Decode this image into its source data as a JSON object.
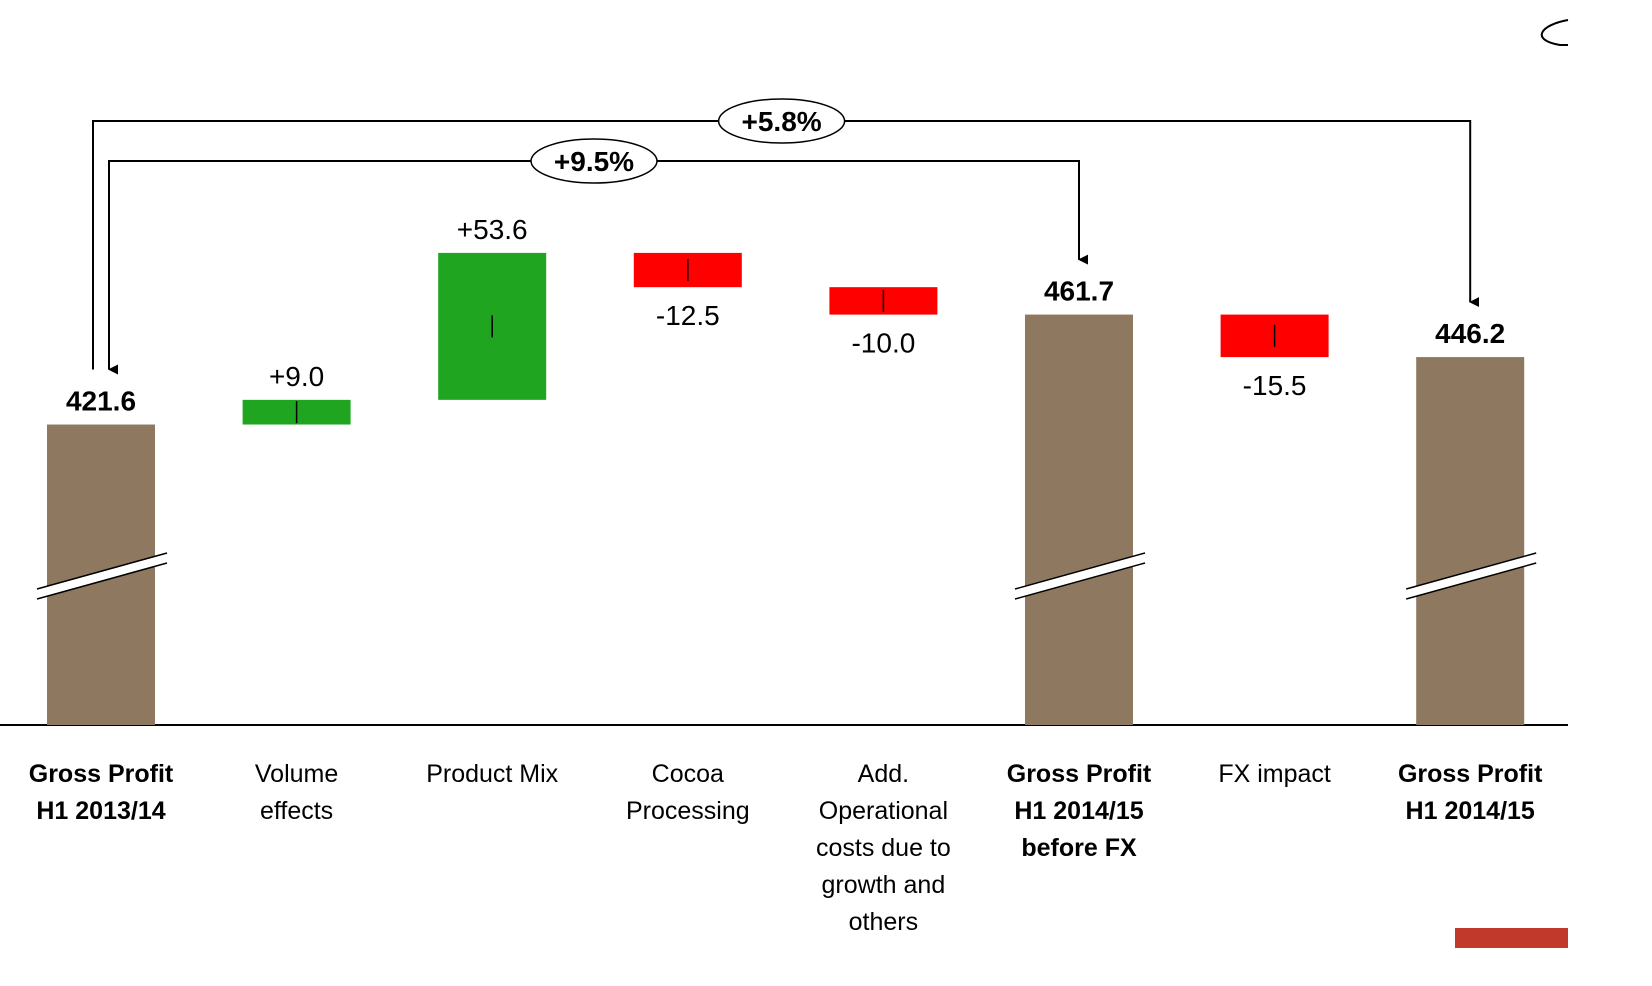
{
  "chart_data": {
    "type": "waterfall",
    "categories": [
      "Gross Profit H1 2013/14",
      "Volume effects",
      "Product Mix",
      "Cocoa Processing",
      "Add. Operational costs due to growth and others",
      "Gross Profit H1 2014/15 before FX",
      "FX impact",
      "Gross Profit H1 2014/15"
    ],
    "measure": [
      "total",
      "relative",
      "relative",
      "relative",
      "relative",
      "total",
      "relative",
      "total"
    ],
    "values": [
      421.6,
      9.0,
      53.6,
      -12.5,
      -10.0,
      461.7,
      -15.5,
      446.2
    ],
    "value_labels": [
      "421.6",
      "+9.0",
      "+53.6",
      "-12.5",
      "-10.0",
      "461.7",
      "-15.5",
      "446.2"
    ],
    "colors": {
      "total": "#8f7860",
      "increase": "#1fa51f",
      "decrease": "#ff0000"
    },
    "ylim": [
      312,
      490
    ],
    "axis_break": true,
    "annotations": [
      {
        "text": "+5.8%",
        "from": "Gross Profit H1 2013/14",
        "to": "Gross Profit H1 2014/15"
      },
      {
        "text": "+9.5%",
        "from": "Gross Profit H1 2013/14",
        "to": "Gross Profit H1 2014/15 before FX"
      }
    ]
  }
}
